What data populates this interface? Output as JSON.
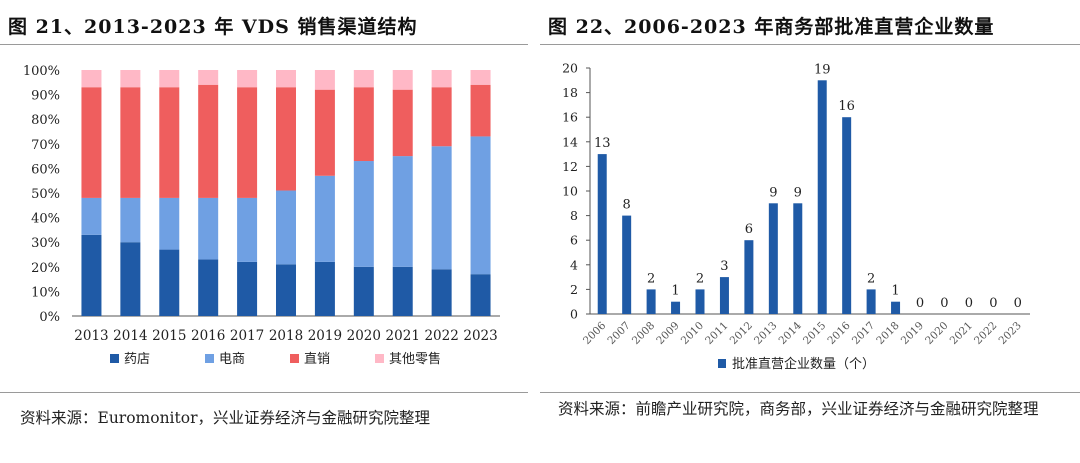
{
  "left": {
    "title": "图 21、2013-2023 年 VDS 销售渠道结构",
    "source": "资料来源：Euromonitor，兴业证券经济与金融研究院整理"
  },
  "right": {
    "title": "图 22、2006-2023 年商务部批准直营企业数量",
    "source": "资料来源：前瞻产业研究院，商务部，兴业证券经济与金融研究院整理"
  },
  "chart_data": [
    {
      "type": "bar",
      "stacked": true,
      "categories": [
        "2013",
        "2014",
        "2015",
        "2016",
        "2017",
        "2018",
        "2019",
        "2020",
        "2021",
        "2022",
        "2023"
      ],
      "ylim": [
        0,
        100
      ],
      "y_ticks": [
        "0%",
        "10%",
        "20%",
        "30%",
        "40%",
        "50%",
        "60%",
        "70%",
        "80%",
        "90%",
        "100%"
      ],
      "series": [
        {
          "name": "药店",
          "color": "#1f5aa6",
          "values": [
            33,
            30,
            27,
            23,
            22,
            21,
            22,
            20,
            20,
            19,
            17
          ]
        },
        {
          "name": "电商",
          "color": "#6fa0e3",
          "values": [
            15,
            18,
            21,
            25,
            26,
            30,
            35,
            43,
            45,
            50,
            56
          ]
        },
        {
          "name": "直销",
          "color": "#ef5e5e",
          "values": [
            45,
            45,
            45,
            46,
            45,
            42,
            35,
            30,
            27,
            24,
            21
          ]
        },
        {
          "name": "其他零售",
          "color": "#ffb8c6",
          "values": [
            7,
            7,
            7,
            6,
            7,
            7,
            8,
            7,
            8,
            7,
            6
          ]
        }
      ],
      "legend_position": "bottom"
    },
    {
      "type": "bar",
      "categories": [
        "2006",
        "2007",
        "2008",
        "2009",
        "2010",
        "2011",
        "2012",
        "2013",
        "2014",
        "2015",
        "2016",
        "2017",
        "2018",
        "2019",
        "2020",
        "2021",
        "2022",
        "2023"
      ],
      "ylim": [
        0,
        20
      ],
      "y_ticks": [
        "0",
        "2",
        "4",
        "6",
        "8",
        "10",
        "12",
        "14",
        "16",
        "18",
        "20"
      ],
      "series": [
        {
          "name": "批准直营企业数量（个）",
          "color": "#1f5aa6",
          "values": [
            13,
            8,
            2,
            1,
            2,
            3,
            6,
            9,
            9,
            19,
            16,
            2,
            1,
            0,
            0,
            0,
            0,
            0
          ]
        }
      ],
      "data_labels": true,
      "legend_position": "bottom"
    }
  ]
}
